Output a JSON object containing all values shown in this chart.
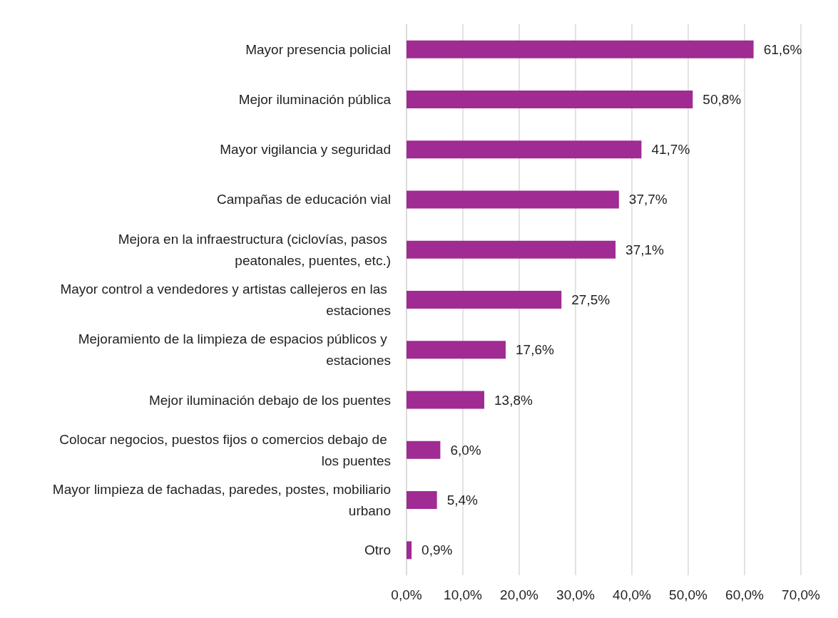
{
  "chart_data": {
    "type": "bar",
    "orientation": "horizontal",
    "categories": [
      "Mayor presencia policial",
      "Mejor iluminación pública",
      "Mayor vigilancia y seguridad",
      "Campañas de educación vial",
      "Mejora en la infraestructura (ciclovías, pasos peatonales, puentes, etc.)",
      "Mayor control a vendedores y artistas callejeros en las estaciones",
      "Mejoramiento de la limpieza de espacios públicos y estaciones",
      "Mejor iluminación debajo de los puentes",
      "Colocar negocios, puestos fijos o comercios debajo de los puentes",
      "Mayor limpieza de fachadas, paredes, postes, mobiliario urbano",
      "Otro"
    ],
    "values": [
      61.6,
      50.8,
      41.7,
      37.7,
      37.1,
      27.5,
      17.6,
      13.8,
      6.0,
      5.4,
      0.9
    ],
    "value_labels": [
      "61,6%",
      "50,8%",
      "41,7%",
      "37,7%",
      "37,1%",
      "27,5%",
      "17,6%",
      "13,8%",
      "6,0%",
      "5,4%",
      "0,9%"
    ],
    "color": "#a02b93",
    "xlim": [
      0,
      70
    ],
    "xticks": [
      {
        "value": 0,
        "label": "0,0%"
      },
      {
        "value": 10,
        "label": "10,0%"
      },
      {
        "value": 20,
        "label": "20,0%"
      },
      {
        "value": 30,
        "label": "30,0%"
      },
      {
        "value": 40,
        "label": "40,0%"
      },
      {
        "value": 50,
        "label": "50,0%"
      },
      {
        "value": 60,
        "label": "60,0%"
      },
      {
        "value": 70,
        "label": "70,0%"
      }
    ],
    "grid": "x"
  }
}
